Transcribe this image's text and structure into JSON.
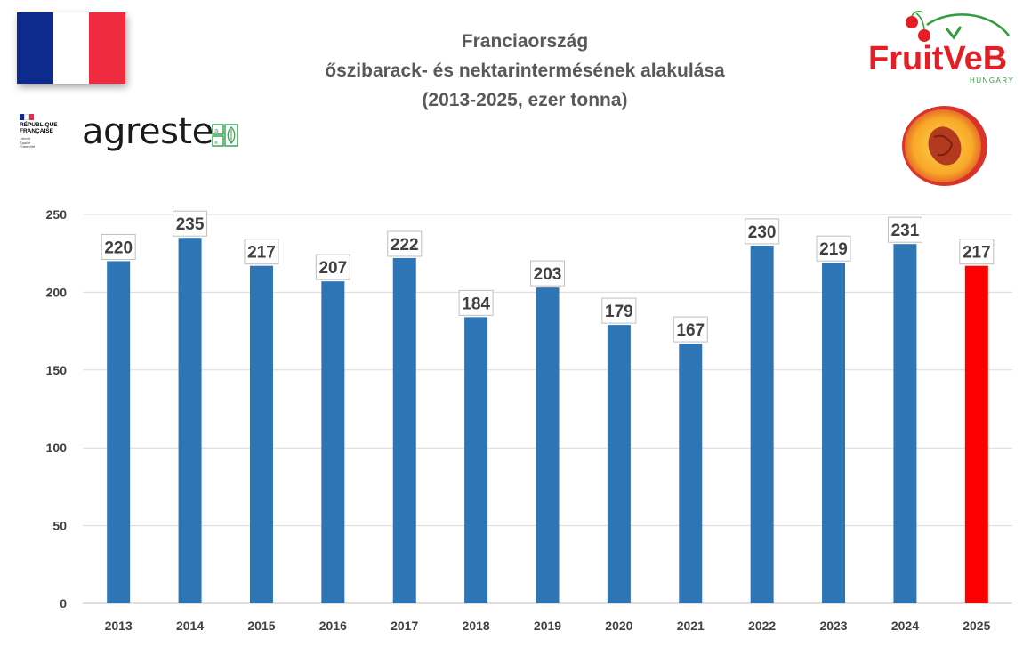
{
  "header": {
    "title_lines": [
      "Franciaország",
      "őszibarack- és nektarintermésének alakulása",
      "(2013-2025, ezer tonna)"
    ]
  },
  "logos": {
    "rf_text": "RÉPUBLIQUE\nFRANÇAISE",
    "rf_motto": "Liberté\nÉgalité\nFraternité",
    "agreste": "agreste",
    "fruitveb_main": "FruitVeB",
    "fruitveb_sub": "HUNGARY"
  },
  "colors": {
    "bar": "#2e75b6",
    "highlight_bar": "#ff0000",
    "flag_blue": "#0d2a8c",
    "flag_white": "#ffffff",
    "flag_red": "#ef2b3f",
    "fruitveb_red": "#e31e24",
    "fruitveb_green": "#2e9e3a"
  },
  "chart_data": {
    "type": "bar",
    "title": "Franciaország őszibarack- és nektarintermésének alakulása (2013-2025, ezer tonna)",
    "categories": [
      "2013",
      "2014",
      "2015",
      "2016",
      "2017",
      "2018",
      "2019",
      "2020",
      "2021",
      "2022",
      "2023",
      "2024",
      "2025"
    ],
    "values": [
      220,
      235,
      217,
      207,
      222,
      184,
      203,
      179,
      167,
      230,
      219,
      231,
      217
    ],
    "highlight_category": "2025",
    "ylim": [
      0,
      250
    ],
    "yticks": [
      0,
      50,
      100,
      150,
      200,
      250
    ],
    "grid": true,
    "data_labels": true
  }
}
